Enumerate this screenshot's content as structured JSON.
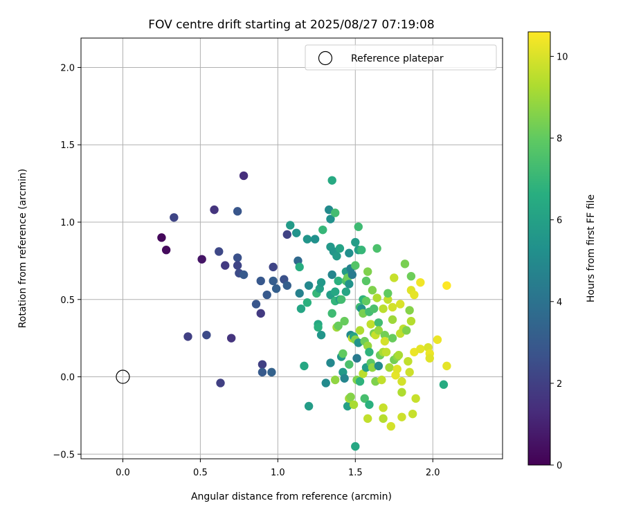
{
  "chart_data": {
    "type": "scatter",
    "title": "FOV centre drift starting at 2025/08/27 07:19:08",
    "xlabel": "Angular distance from reference (arcmin)",
    "ylabel": "Rotation from reference (arcmin)",
    "xlim": [
      -0.27,
      2.45
    ],
    "ylim": [
      -0.53,
      2.19
    ],
    "xticks": [
      0.0,
      0.5,
      1.0,
      1.5,
      2.0
    ],
    "yticks": [
      -0.5,
      0.0,
      0.5,
      1.0,
      1.5,
      2.0
    ],
    "xtick_labels": [
      "0.0",
      "0.5",
      "1.0",
      "1.5",
      "2.0"
    ],
    "ytick_labels": [
      "−0.5",
      "0.0",
      "0.5",
      "1.0",
      "1.5",
      "2.0"
    ],
    "grid": true,
    "legend": {
      "location": "upper right",
      "entries": [
        "Reference platepar"
      ]
    },
    "reference_point": {
      "x": 0.0,
      "y": 0.0,
      "marker": "open-circle",
      "label": "Reference platepar"
    },
    "colorbar": {
      "label": "Hours from first FF file",
      "colormap": "viridis",
      "range": [
        0,
        10.6
      ],
      "ticks": [
        0,
        2,
        4,
        6,
        8,
        10
      ],
      "tick_labels": [
        "0",
        "2",
        "4",
        "6",
        "8",
        "10"
      ]
    },
    "points": [
      {
        "x": 0.25,
        "y": 0.9,
        "c": 0.2
      },
      {
        "x": 0.28,
        "y": 0.82,
        "c": 0.3
      },
      {
        "x": 0.51,
        "y": 0.76,
        "c": 0.6
      },
      {
        "x": 0.33,
        "y": 1.03,
        "c": 2.2
      },
      {
        "x": 0.59,
        "y": 1.08,
        "c": 1.6
      },
      {
        "x": 0.78,
        "y": 1.3,
        "c": 1.4
      },
      {
        "x": 0.74,
        "y": 1.07,
        "c": 2.8
      },
      {
        "x": 0.62,
        "y": 0.81,
        "c": 2.3
      },
      {
        "x": 0.66,
        "y": 0.72,
        "c": 1.8
      },
      {
        "x": 0.74,
        "y": 0.77,
        "c": 2.6
      },
      {
        "x": 0.74,
        "y": 0.72,
        "c": 2.2
      },
      {
        "x": 0.75,
        "y": 0.67,
        "c": 2.4
      },
      {
        "x": 0.78,
        "y": 0.66,
        "c": 3.0
      },
      {
        "x": 0.42,
        "y": 0.26,
        "c": 2.0
      },
      {
        "x": 0.54,
        "y": 0.27,
        "c": 2.4
      },
      {
        "x": 0.63,
        "y": -0.04,
        "c": 2.0
      },
      {
        "x": 0.7,
        "y": 0.25,
        "c": 1.6
      },
      {
        "x": 0.86,
        "y": 0.47,
        "c": 2.8
      },
      {
        "x": 0.89,
        "y": 0.41,
        "c": 1.8
      },
      {
        "x": 0.89,
        "y": 0.62,
        "c": 2.9
      },
      {
        "x": 0.9,
        "y": 0.08,
        "c": 2.0
      },
      {
        "x": 0.9,
        "y": 0.03,
        "c": 3.0
      },
      {
        "x": 0.96,
        "y": 0.03,
        "c": 3.3
      },
      {
        "x": 0.93,
        "y": 0.53,
        "c": 3.0
      },
      {
        "x": 0.97,
        "y": 0.71,
        "c": 2.2
      },
      {
        "x": 0.97,
        "y": 0.62,
        "c": 3.1
      },
      {
        "x": 0.99,
        "y": 0.57,
        "c": 3.2
      },
      {
        "x": 1.04,
        "y": 0.63,
        "c": 2.6
      },
      {
        "x": 1.06,
        "y": 0.92,
        "c": 2.1
      },
      {
        "x": 1.06,
        "y": 0.59,
        "c": 3.2
      },
      {
        "x": 1.08,
        "y": 0.98,
        "c": 5.7
      },
      {
        "x": 1.12,
        "y": 0.93,
        "c": 5.4
      },
      {
        "x": 1.13,
        "y": 0.75,
        "c": 3.6
      },
      {
        "x": 1.14,
        "y": 0.71,
        "c": 6.6
      },
      {
        "x": 1.14,
        "y": 0.54,
        "c": 4.6
      },
      {
        "x": 1.15,
        "y": 0.44,
        "c": 6.2
      },
      {
        "x": 1.17,
        "y": 0.07,
        "c": 6.3
      },
      {
        "x": 1.19,
        "y": 0.89,
        "c": 5.5
      },
      {
        "x": 1.19,
        "y": 0.48,
        "c": 6.7
      },
      {
        "x": 1.2,
        "y": 0.59,
        "c": 4.9
      },
      {
        "x": 1.2,
        "y": -0.19,
        "c": 5.8
      },
      {
        "x": 1.24,
        "y": 0.89,
        "c": 5.3
      },
      {
        "x": 1.25,
        "y": 0.54,
        "c": 7.0
      },
      {
        "x": 1.26,
        "y": 0.34,
        "c": 6.3
      },
      {
        "x": 1.26,
        "y": 0.32,
        "c": 6.7
      },
      {
        "x": 1.27,
        "y": 0.57,
        "c": 6.0
      },
      {
        "x": 1.28,
        "y": 0.27,
        "c": 5.5
      },
      {
        "x": 1.28,
        "y": 0.61,
        "c": 5.6
      },
      {
        "x": 1.29,
        "y": 0.95,
        "c": 7.0
      },
      {
        "x": 1.31,
        "y": -0.04,
        "c": 5.0
      },
      {
        "x": 1.33,
        "y": 1.08,
        "c": 5.0
      },
      {
        "x": 1.34,
        "y": 1.02,
        "c": 5.3
      },
      {
        "x": 1.34,
        "y": 0.84,
        "c": 5.6
      },
      {
        "x": 1.34,
        "y": 0.53,
        "c": 5.9
      },
      {
        "x": 1.34,
        "y": 0.09,
        "c": 4.9
      },
      {
        "x": 1.35,
        "y": 0.66,
        "c": 4.8
      },
      {
        "x": 1.35,
        "y": 0.41,
        "c": 7.2
      },
      {
        "x": 1.35,
        "y": 1.27,
        "c": 6.4
      },
      {
        "x": 1.36,
        "y": 0.81,
        "c": 5.5
      },
      {
        "x": 1.37,
        "y": 0.55,
        "c": 6.3
      },
      {
        "x": 1.37,
        "y": 0.49,
        "c": 6.9
      },
      {
        "x": 1.37,
        "y": -0.02,
        "c": 8.8
      },
      {
        "x": 1.37,
        "y": 1.06,
        "c": 7.3
      },
      {
        "x": 1.38,
        "y": 0.78,
        "c": 5.7
      },
      {
        "x": 1.38,
        "y": 0.32,
        "c": 9.0
      },
      {
        "x": 1.39,
        "y": 0.62,
        "c": 6.7
      },
      {
        "x": 1.39,
        "y": 0.33,
        "c": 8.1
      },
      {
        "x": 1.4,
        "y": 0.83,
        "c": 6.1
      },
      {
        "x": 1.4,
        "y": 0.5,
        "c": 5.9
      },
      {
        "x": 1.41,
        "y": 0.13,
        "c": 5.6
      },
      {
        "x": 1.41,
        "y": 0.5,
        "c": 7.3
      },
      {
        "x": 1.42,
        "y": 0.03,
        "c": 5.7
      },
      {
        "x": 1.42,
        "y": 0.15,
        "c": 8.0
      },
      {
        "x": 1.43,
        "y": 0.36,
        "c": 8.1
      },
      {
        "x": 1.43,
        "y": -0.01,
        "c": 4.8
      },
      {
        "x": 1.44,
        "y": 0.68,
        "c": 5.8
      },
      {
        "x": 1.44,
        "y": 0.55,
        "c": 6.2
      },
      {
        "x": 1.44,
        "y": 0.62,
        "c": 7.5
      },
      {
        "x": 1.45,
        "y": 0.64,
        "c": 8.2
      },
      {
        "x": 1.45,
        "y": -0.19,
        "c": 6.0
      },
      {
        "x": 1.46,
        "y": 0.6,
        "c": 5.4
      },
      {
        "x": 1.46,
        "y": 0.8,
        "c": 5.2
      },
      {
        "x": 1.46,
        "y": 0.08,
        "c": 7.5
      },
      {
        "x": 1.46,
        "y": -0.14,
        "c": 9.1
      },
      {
        "x": 1.47,
        "y": 0.7,
        "c": 4.6
      },
      {
        "x": 1.47,
        "y": 0.27,
        "c": 5.0
      },
      {
        "x": 1.47,
        "y": -0.13,
        "c": 8.6
      },
      {
        "x": 1.48,
        "y": 0.66,
        "c": 4.3
      },
      {
        "x": 1.48,
        "y": 0.25,
        "c": 9.6
      },
      {
        "x": 1.49,
        "y": 0.26,
        "c": 6.1
      },
      {
        "x": 1.49,
        "y": -0.18,
        "c": 9.2
      },
      {
        "x": 1.5,
        "y": 0.87,
        "c": 5.8
      },
      {
        "x": 1.5,
        "y": 0.72,
        "c": 7.7
      },
      {
        "x": 1.5,
        "y": 0.24,
        "c": 8.6
      },
      {
        "x": 1.5,
        "y": -0.45,
        "c": 6.3
      },
      {
        "x": 1.51,
        "y": 0.12,
        "c": 4.3
      },
      {
        "x": 1.51,
        "y": -0.02,
        "c": 8.5
      },
      {
        "x": 1.52,
        "y": 0.82,
        "c": 5.9
      },
      {
        "x": 1.52,
        "y": 0.97,
        "c": 7.2
      },
      {
        "x": 1.52,
        "y": 0.22,
        "c": 5.4
      },
      {
        "x": 1.53,
        "y": 0.3,
        "c": 9.3
      },
      {
        "x": 1.53,
        "y": 0.45,
        "c": 7.2
      },
      {
        "x": 1.53,
        "y": -0.03,
        "c": 6.8
      },
      {
        "x": 1.54,
        "y": 0.82,
        "c": 7.0
      },
      {
        "x": 1.54,
        "y": 0.44,
        "c": 5.4
      },
      {
        "x": 1.55,
        "y": 0.5,
        "c": 6.8
      },
      {
        "x": 1.55,
        "y": 0.41,
        "c": 8.4
      },
      {
        "x": 1.55,
        "y": 0.02,
        "c": 9.5
      },
      {
        "x": 1.56,
        "y": 0.23,
        "c": 8.2
      },
      {
        "x": 1.56,
        "y": -0.14,
        "c": 7.4
      },
      {
        "x": 1.57,
        "y": 0.62,
        "c": 7.8
      },
      {
        "x": 1.57,
        "y": 0.49,
        "c": 8.0
      },
      {
        "x": 1.57,
        "y": 0.06,
        "c": 5.9
      },
      {
        "x": 1.58,
        "y": 0.68,
        "c": 8.5
      },
      {
        "x": 1.58,
        "y": 0.2,
        "c": 8.9
      },
      {
        "x": 1.58,
        "y": -0.27,
        "c": 9.6
      },
      {
        "x": 1.59,
        "y": 0.42,
        "c": 7.3
      },
      {
        "x": 1.59,
        "y": 0.16,
        "c": 6.8
      },
      {
        "x": 1.59,
        "y": -0.18,
        "c": 6.7
      },
      {
        "x": 1.6,
        "y": 0.34,
        "c": 9.6
      },
      {
        "x": 1.6,
        "y": 0.09,
        "c": 7.8
      },
      {
        "x": 1.61,
        "y": 0.56,
        "c": 8.5
      },
      {
        "x": 1.61,
        "y": 0.06,
        "c": 8.8
      },
      {
        "x": 1.62,
        "y": 0.44,
        "c": 7.5
      },
      {
        "x": 1.62,
        "y": 0.28,
        "c": 8.4
      },
      {
        "x": 1.63,
        "y": 0.27,
        "c": 9.7
      },
      {
        "x": 1.63,
        "y": -0.03,
        "c": 8.5
      },
      {
        "x": 1.64,
        "y": 0.51,
        "c": 9.3
      },
      {
        "x": 1.64,
        "y": 0.83,
        "c": 7.5
      },
      {
        "x": 1.65,
        "y": 0.35,
        "c": 7.3
      },
      {
        "x": 1.65,
        "y": 0.3,
        "c": 8.9
      },
      {
        "x": 1.65,
        "y": 0.07,
        "c": 5.0
      },
      {
        "x": 1.66,
        "y": 0.14,
        "c": 8.2
      },
      {
        "x": 1.67,
        "y": -0.02,
        "c": 9.6
      },
      {
        "x": 1.68,
        "y": 0.44,
        "c": 9.5
      },
      {
        "x": 1.68,
        "y": 0.16,
        "c": 9.2
      },
      {
        "x": 1.68,
        "y": -0.2,
        "c": 9.7
      },
      {
        "x": 1.68,
        "y": -0.27,
        "c": 9.4
      },
      {
        "x": 1.69,
        "y": 0.27,
        "c": 8.3
      },
      {
        "x": 1.69,
        "y": 0.23,
        "c": 9.9
      },
      {
        "x": 1.7,
        "y": 0.16,
        "c": 9.6
      },
      {
        "x": 1.71,
        "y": 0.5,
        "c": 9.6
      },
      {
        "x": 1.71,
        "y": 0.54,
        "c": 8.0
      },
      {
        "x": 1.72,
        "y": 0.06,
        "c": 9.1
      },
      {
        "x": 1.73,
        "y": -0.32,
        "c": 9.9
      },
      {
        "x": 1.74,
        "y": 0.45,
        "c": 9.9
      },
      {
        "x": 1.74,
        "y": 0.37,
        "c": 9.0
      },
      {
        "x": 1.74,
        "y": 0.25,
        "c": 8.1
      },
      {
        "x": 1.75,
        "y": 0.64,
        "c": 9.7
      },
      {
        "x": 1.75,
        "y": 0.11,
        "c": 8.3
      },
      {
        "x": 1.76,
        "y": 0.01,
        "c": 10.2
      },
      {
        "x": 1.77,
        "y": 0.13,
        "c": 8.7
      },
      {
        "x": 1.77,
        "y": 0.05,
        "c": 10.1
      },
      {
        "x": 1.78,
        "y": 0.14,
        "c": 9.2
      },
      {
        "x": 1.79,
        "y": 0.28,
        "c": 9.6
      },
      {
        "x": 1.79,
        "y": 0.47,
        "c": 10.0
      },
      {
        "x": 1.8,
        "y": -0.03,
        "c": 9.9
      },
      {
        "x": 1.8,
        "y": -0.26,
        "c": 9.8
      },
      {
        "x": 1.8,
        "y": -0.1,
        "c": 9.3
      },
      {
        "x": 1.81,
        "y": 0.31,
        "c": 9.5
      },
      {
        "x": 1.82,
        "y": 0.73,
        "c": 8.4
      },
      {
        "x": 1.83,
        "y": 0.3,
        "c": 8.5
      },
      {
        "x": 1.84,
        "y": 0.1,
        "c": 9.6
      },
      {
        "x": 1.85,
        "y": 0.43,
        "c": 8.6
      },
      {
        "x": 1.85,
        "y": 0.03,
        "c": 9.8
      },
      {
        "x": 1.86,
        "y": 0.56,
        "c": 10.1
      },
      {
        "x": 1.86,
        "y": 0.36,
        "c": 9.4
      },
      {
        "x": 1.86,
        "y": 0.65,
        "c": 8.2
      },
      {
        "x": 1.87,
        "y": -0.24,
        "c": 9.7
      },
      {
        "x": 1.88,
        "y": 0.53,
        "c": 10.2
      },
      {
        "x": 1.88,
        "y": 0.16,
        "c": 10.3
      },
      {
        "x": 1.89,
        "y": -0.14,
        "c": 9.7
      },
      {
        "x": 1.92,
        "y": 0.61,
        "c": 10.4
      },
      {
        "x": 1.92,
        "y": 0.18,
        "c": 10.2
      },
      {
        "x": 1.97,
        "y": 0.19,
        "c": 10.0
      },
      {
        "x": 1.98,
        "y": 0.15,
        "c": 10.3
      },
      {
        "x": 1.98,
        "y": 0.12,
        "c": 10.1
      },
      {
        "x": 2.03,
        "y": 0.24,
        "c": 10.3
      },
      {
        "x": 2.07,
        "y": -0.05,
        "c": 6.5
      },
      {
        "x": 2.09,
        "y": 0.59,
        "c": 10.6
      },
      {
        "x": 2.09,
        "y": 0.07,
        "c": 10.2
      }
    ]
  }
}
